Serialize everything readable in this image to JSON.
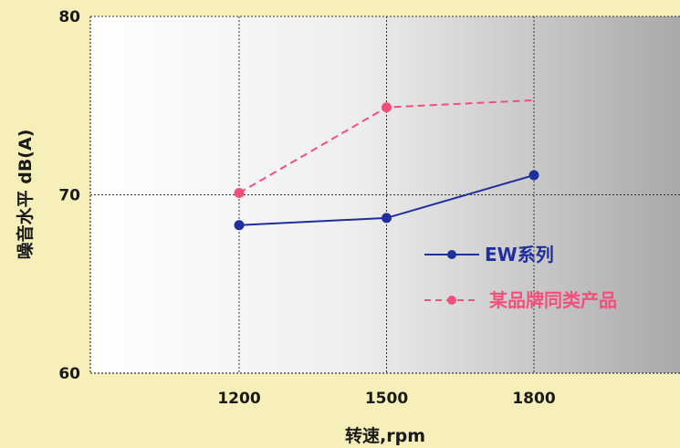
{
  "chart_data": {
    "type": "line",
    "xlabel": "转速,rpm",
    "ylabel": "噪音水平 dB(A)",
    "x": [
      1200,
      1500,
      1800
    ],
    "x_ticks": [
      "1200",
      "1500",
      "1800"
    ],
    "y_ticks": [
      "60",
      "70",
      "80"
    ],
    "ylim": [
      60,
      80
    ],
    "grid": true,
    "legend_position": "bottom-right",
    "series": [
      {
        "name": "EW系列",
        "color": "#1f2f9e",
        "dashed": false,
        "values": [
          68.3,
          68.7,
          71.1
        ]
      },
      {
        "name": "某品牌同类产品",
        "color": "#f2507a",
        "dashed": true,
        "values": [
          70.1,
          74.9,
          75.3
        ]
      }
    ]
  }
}
